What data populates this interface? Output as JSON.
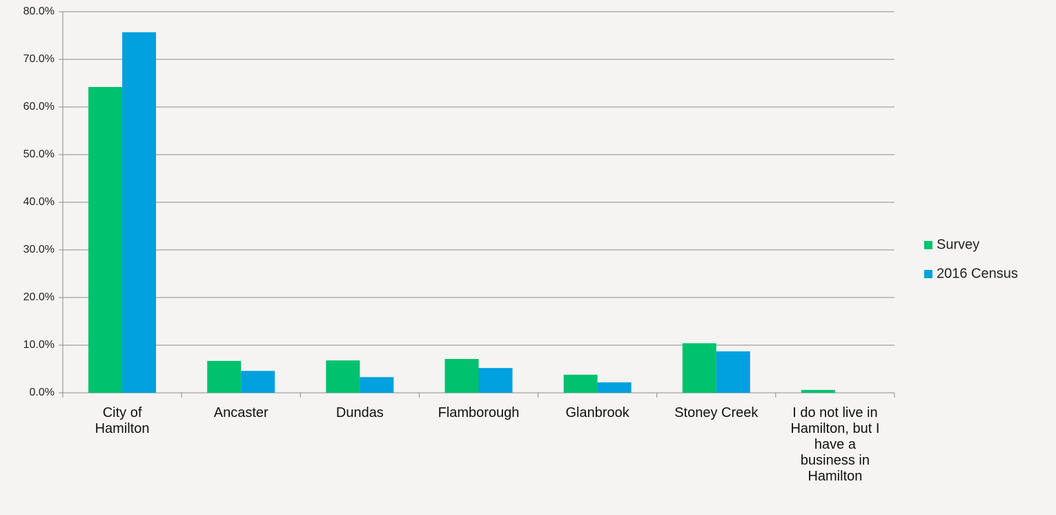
{
  "chart_data": {
    "type": "bar",
    "categories": [
      "City of Hamilton",
      "Ancaster",
      "Dundas",
      "Flamborough",
      "Glanbrook",
      "Stoney Creek",
      "I do not live in Hamilton, but I have a business in Hamilton"
    ],
    "series": [
      {
        "name": "Survey",
        "color": "#00c16e",
        "values": [
          64.2,
          6.7,
          6.8,
          7.1,
          3.8,
          10.4,
          0.6
        ]
      },
      {
        "name": "2016 Census",
        "color": "#00a1de",
        "values": [
          75.7,
          4.6,
          3.3,
          5.2,
          2.2,
          8.7,
          null
        ]
      }
    ],
    "ylim": [
      0,
      80
    ],
    "yticks": [
      {
        "value": 0,
        "label": "0.0%"
      },
      {
        "value": 10,
        "label": "10.0%"
      },
      {
        "value": 20,
        "label": "20.0%"
      },
      {
        "value": 30,
        "label": "30.0%"
      },
      {
        "value": 40,
        "label": "40.0%"
      },
      {
        "value": 50,
        "label": "50.0%"
      },
      {
        "value": 60,
        "label": "60.0%"
      },
      {
        "value": 70,
        "label": "70.0%"
      },
      {
        "value": 80,
        "label": "80.0%"
      }
    ],
    "grid": true,
    "legend": "right"
  }
}
